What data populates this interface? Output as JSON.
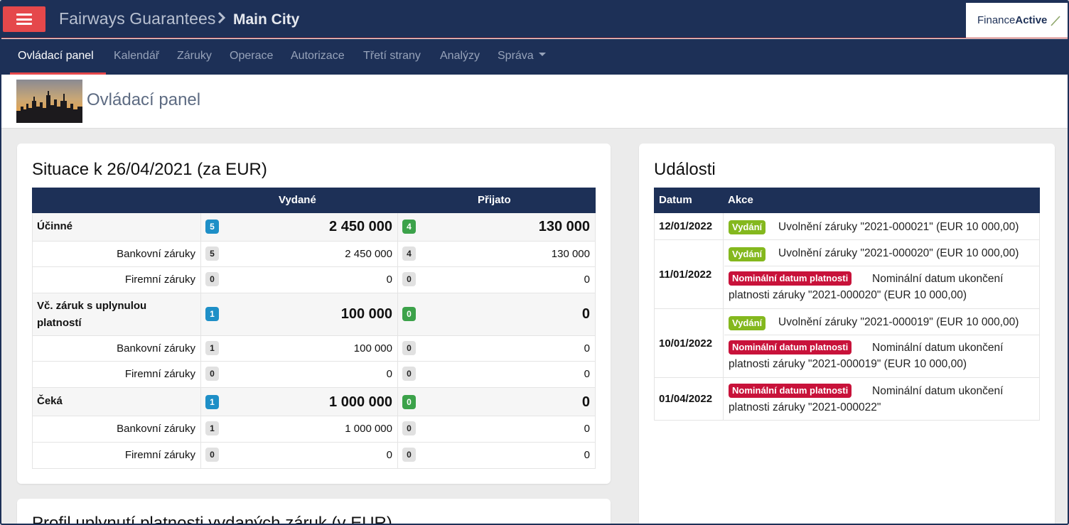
{
  "header": {
    "company": "Fairways Guarantees",
    "city": "Main City",
    "logo_text_light": "Finance",
    "logo_text_bold": "Active"
  },
  "nav": {
    "items": [
      {
        "label": "Ovládací panel",
        "active": true
      },
      {
        "label": "Kalendář"
      },
      {
        "label": "Záruky"
      },
      {
        "label": "Operace"
      },
      {
        "label": "Autorizace"
      },
      {
        "label": "Třetí strany"
      },
      {
        "label": "Analýzy"
      },
      {
        "label": "Správa"
      }
    ]
  },
  "page": {
    "title": "Ovládací panel"
  },
  "situation": {
    "title": "Situace k 26/04/2021 (za EUR)",
    "col_issued": "Vydané",
    "col_received": "Přijato",
    "groups": [
      {
        "label": "Účinné",
        "issued_count": "5",
        "issued_amount": "2 450 000",
        "received_count": "4",
        "received_amount": "130 000",
        "subs": [
          {
            "label": "Bankovní záruky",
            "issued_count": "5",
            "issued_amount": "2 450 000",
            "received_count": "4",
            "received_amount": "130 000"
          },
          {
            "label": "Firemní záruky",
            "issued_count": "0",
            "issued_amount": "0",
            "received_count": "0",
            "received_amount": "0"
          }
        ]
      },
      {
        "label_line1": "Vč. záruk s uplynulou",
        "label_line2": "platností",
        "issued_count": "1",
        "issued_amount": "100 000",
        "received_count": "0",
        "received_amount": "0",
        "subs": [
          {
            "label": "Bankovní záruky",
            "issued_count": "1",
            "issued_amount": "100 000",
            "received_count": "0",
            "received_amount": "0"
          },
          {
            "label": "Firemní záruky",
            "issued_count": "0",
            "issued_amount": "0",
            "received_count": "0",
            "received_amount": "0"
          }
        ]
      },
      {
        "label": "Čeká",
        "issued_count": "1",
        "issued_amount": "1 000 000",
        "received_count": "0",
        "received_amount": "0",
        "subs": [
          {
            "label": "Bankovní záruky",
            "issued_count": "1",
            "issued_amount": "1 000 000",
            "received_count": "0",
            "received_amount": "0"
          },
          {
            "label": "Firemní záruky",
            "issued_count": "0",
            "issued_amount": "0",
            "received_count": "0",
            "received_amount": "0"
          }
        ]
      }
    ]
  },
  "events": {
    "title": "Události",
    "col_date": "Datum",
    "col_action": "Akce",
    "groups": [
      {
        "date": "12/01/2022",
        "items": [
          {
            "badge": "Vydání",
            "badge_color": "#84b81e",
            "text": "Uvolnění záruky \"2021-000021\" (EUR 10 000,00)"
          }
        ]
      },
      {
        "date": "11/01/2022",
        "items": [
          {
            "badge": "Vydání",
            "badge_color": "#84b81e",
            "text": "Uvolnění záruky \"2021-000020\" (EUR 10 000,00)"
          },
          {
            "badge": "Nominální datum platnosti",
            "badge_color": "#c8123a",
            "text_line1": "Nominální datum ukončení",
            "text_line2": "platnosti záruky \"2021-000020\" (EUR 10 000,00)"
          }
        ]
      },
      {
        "date": "10/01/2022",
        "items": [
          {
            "badge": "Vydání",
            "badge_color": "#84b81e",
            "text": "Uvolnění záruky \"2021-000019\" (EUR 10 000,00)"
          },
          {
            "badge": "Nominální datum platnosti",
            "badge_color": "#c8123a",
            "text_line1": "Nominální datum ukončení",
            "text_line2": "platnosti záruky \"2021-000019\" (EUR 10 000,00)"
          }
        ]
      },
      {
        "date": "01/04/2022",
        "items": [
          {
            "badge": "Nominální datum platnosti",
            "badge_color": "#c8123a",
            "text_line1": "Nominální datum ukončení",
            "text_line2": "platnosti záruky \"2021-000022\""
          }
        ]
      }
    ]
  },
  "profile": {
    "title": "Profil uplynutí platnosti vydaných záruk (v EUR)"
  },
  "colors": {
    "navy": "#1d3057",
    "accent_red": "#e5484b",
    "badge_blue": "#1e8fc7",
    "badge_green": "#3ca24a"
  }
}
